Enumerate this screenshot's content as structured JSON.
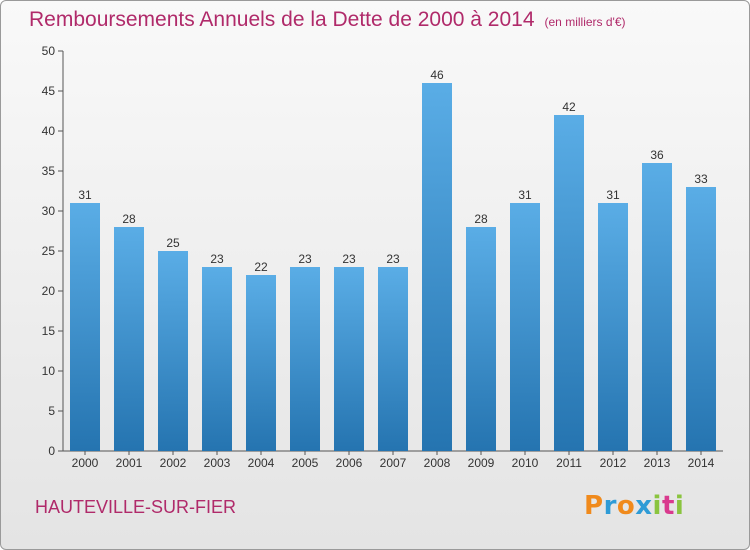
{
  "header": {
    "title": "Remboursements Annuels de la Dette de 2000 à 2014",
    "unit": "(en milliers d'€)"
  },
  "footer": {
    "commune": "HAUTEVILLE-SUR-FIER",
    "logo": "Proxiti"
  },
  "colors": {
    "accent": "#b02a6a",
    "bar_light": "#5aade6",
    "bar_dark": "#2574b0",
    "logo": [
      "#f08a1c",
      "#2e9bd6",
      "#f08a1c",
      "#2e9bd6",
      "#8ac43f",
      "#d93a8e",
      "#8ac43f"
    ]
  },
  "chart_data": {
    "type": "bar",
    "title": "Remboursements Annuels de la Dette de 2000 à 2014",
    "subtitle": "(en milliers d'€)",
    "categories": [
      "2000",
      "2001",
      "2002",
      "2003",
      "2004",
      "2005",
      "2006",
      "2007",
      "2008",
      "2009",
      "2010",
      "2011",
      "2012",
      "2013",
      "2014"
    ],
    "values": [
      31,
      28,
      25,
      23,
      22,
      23,
      23,
      23,
      46,
      28,
      31,
      42,
      31,
      36,
      33
    ],
    "xlabel": "",
    "ylabel": "",
    "ylim": [
      0,
      50
    ],
    "yticks": [
      0,
      5,
      10,
      15,
      20,
      25,
      30,
      35,
      40,
      45,
      50
    ],
    "grid": false,
    "legend": "none"
  }
}
